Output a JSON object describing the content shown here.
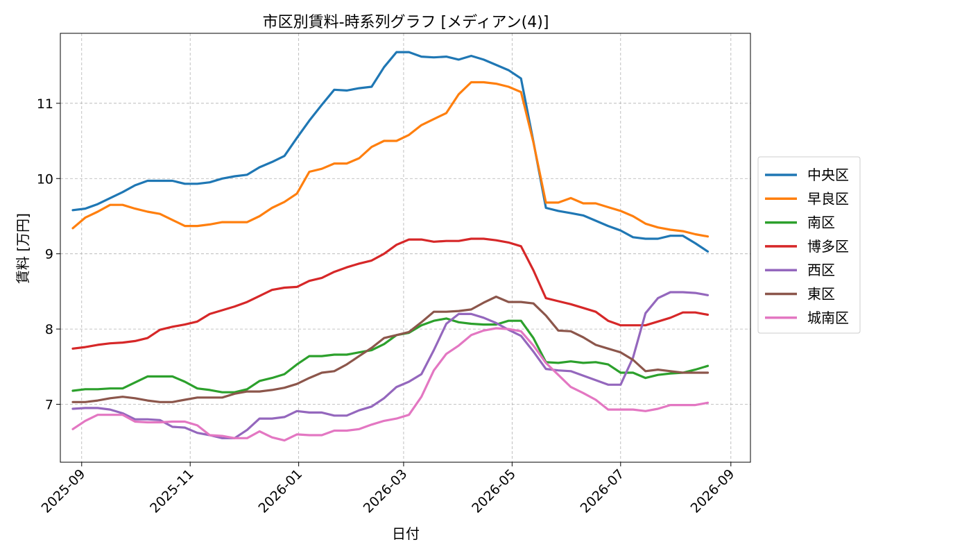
{
  "chart_data": {
    "type": "line",
    "title": "市区別賃料-時系列グラフ [メディアン(4)]",
    "xlabel": "日付",
    "ylabel": "賃料 [万円]",
    "xlim": [
      "2025-08-20",
      "2026-09-12"
    ],
    "ylim": [
      6.23,
      11.93
    ],
    "x_ticks": [
      "2025-09",
      "2025-11",
      "2026-01",
      "2026-03",
      "2026-05",
      "2026-07",
      "2026-09"
    ],
    "y_ticks": [
      7,
      8,
      9,
      10,
      11
    ],
    "grid": true,
    "legend_position": "right",
    "x": [
      "2025-08-27",
      "2025-09-03",
      "2025-09-10",
      "2025-09-17",
      "2025-09-24",
      "2025-10-01",
      "2025-10-08",
      "2025-10-15",
      "2025-10-22",
      "2025-10-29",
      "2025-11-05",
      "2025-11-12",
      "2025-11-19",
      "2025-11-26",
      "2025-12-03",
      "2025-12-10",
      "2025-12-17",
      "2025-12-24",
      "2025-12-31",
      "2026-01-07",
      "2026-01-14",
      "2026-01-21",
      "2026-01-28",
      "2026-02-04",
      "2026-02-11",
      "2026-02-18",
      "2026-02-25",
      "2026-03-04",
      "2026-03-11",
      "2026-03-18",
      "2026-03-25",
      "2026-04-01",
      "2026-04-08",
      "2026-04-15",
      "2026-04-22",
      "2026-04-29",
      "2026-05-06",
      "2026-05-13",
      "2026-05-20",
      "2026-05-27",
      "2026-06-03",
      "2026-06-10",
      "2026-06-17",
      "2026-06-24",
      "2026-07-01",
      "2026-07-08",
      "2026-07-15",
      "2026-07-22",
      "2026-07-29",
      "2026-08-05",
      "2026-08-12",
      "2026-08-19"
    ],
    "series": [
      {
        "name": "中央区",
        "color": "#1f77b4",
        "values": [
          9.58,
          9.6,
          9.66,
          9.74,
          9.82,
          9.91,
          9.97,
          9.97,
          9.97,
          9.93,
          9.93,
          9.95,
          10.0,
          10.03,
          10.05,
          10.15,
          10.22,
          10.3,
          10.54,
          10.77,
          10.98,
          11.18,
          11.17,
          11.2,
          11.22,
          11.48,
          11.68,
          11.68,
          11.62,
          11.61,
          11.62,
          11.58,
          11.63,
          11.58,
          11.51,
          11.44,
          11.33,
          10.49,
          9.61,
          9.57,
          9.54,
          9.51,
          9.44,
          9.37,
          9.31,
          9.22,
          9.2,
          9.2,
          9.24,
          9.24,
          9.14,
          9.03
        ]
      },
      {
        "name": "早良区",
        "color": "#ff7f0e",
        "values": [
          9.34,
          9.48,
          9.56,
          9.65,
          9.65,
          9.6,
          9.56,
          9.53,
          9.45,
          9.37,
          9.37,
          9.39,
          9.42,
          9.42,
          9.42,
          9.5,
          9.61,
          9.69,
          9.8,
          10.09,
          10.13,
          10.2,
          10.2,
          10.27,
          10.42,
          10.5,
          10.5,
          10.58,
          10.71,
          10.79,
          10.87,
          11.12,
          11.28,
          11.28,
          11.26,
          11.22,
          11.15,
          10.48,
          9.68,
          9.68,
          9.74,
          9.67,
          9.67,
          9.62,
          9.57,
          9.5,
          9.4,
          9.35,
          9.32,
          9.3,
          9.26,
          9.23
        ]
      },
      {
        "name": "南区",
        "color": "#2ca02c",
        "values": [
          7.18,
          7.2,
          7.2,
          7.21,
          7.21,
          7.29,
          7.37,
          7.37,
          7.37,
          7.3,
          7.21,
          7.19,
          7.16,
          7.16,
          7.2,
          7.31,
          7.35,
          7.4,
          7.53,
          7.64,
          7.64,
          7.66,
          7.66,
          7.69,
          7.72,
          7.8,
          7.92,
          7.95,
          8.05,
          8.11,
          8.14,
          8.09,
          8.07,
          8.06,
          8.06,
          8.11,
          8.11,
          7.88,
          7.56,
          7.55,
          7.57,
          7.55,
          7.56,
          7.53,
          7.42,
          7.42,
          7.35,
          7.39,
          7.41,
          7.42,
          7.46,
          7.51
        ]
      },
      {
        "name": "博多区",
        "color": "#d62728",
        "values": [
          7.74,
          7.76,
          7.79,
          7.81,
          7.82,
          7.84,
          7.88,
          7.99,
          8.03,
          8.06,
          8.1,
          8.2,
          8.25,
          8.3,
          8.36,
          8.44,
          8.52,
          8.55,
          8.56,
          8.64,
          8.68,
          8.76,
          8.82,
          8.87,
          8.91,
          9.0,
          9.12,
          9.19,
          9.19,
          9.16,
          9.17,
          9.17,
          9.2,
          9.2,
          9.18,
          9.15,
          9.1,
          8.78,
          8.41,
          8.37,
          8.33,
          8.28,
          8.23,
          8.11,
          8.05,
          8.05,
          8.05,
          8.1,
          8.15,
          8.22,
          8.22,
          8.19
        ]
      },
      {
        "name": "西区",
        "color": "#9467bd",
        "values": [
          6.94,
          6.95,
          6.95,
          6.93,
          6.88,
          6.8,
          6.8,
          6.79,
          6.7,
          6.69,
          6.62,
          6.59,
          6.55,
          6.55,
          6.66,
          6.81,
          6.81,
          6.83,
          6.91,
          6.89,
          6.89,
          6.85,
          6.85,
          6.92,
          6.97,
          7.08,
          7.23,
          7.3,
          7.4,
          7.72,
          8.07,
          8.2,
          8.2,
          8.15,
          8.08,
          7.99,
          7.91,
          7.7,
          7.47,
          7.45,
          7.44,
          7.38,
          7.32,
          7.26,
          7.26,
          7.62,
          8.21,
          8.41,
          8.49,
          8.49,
          8.48,
          8.45
        ]
      },
      {
        "name": "東区",
        "color": "#8c564b",
        "values": [
          7.03,
          7.03,
          7.05,
          7.08,
          7.1,
          7.08,
          7.05,
          7.03,
          7.03,
          7.06,
          7.09,
          7.09,
          7.09,
          7.14,
          7.17,
          7.17,
          7.19,
          7.22,
          7.27,
          7.35,
          7.42,
          7.44,
          7.53,
          7.64,
          7.75,
          7.88,
          7.92,
          7.96,
          8.09,
          8.23,
          8.23,
          8.24,
          8.26,
          8.35,
          8.43,
          8.36,
          8.36,
          8.34,
          8.18,
          7.98,
          7.97,
          7.89,
          7.79,
          7.74,
          7.69,
          7.59,
          7.44,
          7.46,
          7.44,
          7.42,
          7.42,
          7.42
        ]
      },
      {
        "name": "城南区",
        "color": "#e377c2",
        "values": [
          6.67,
          6.78,
          6.86,
          6.86,
          6.86,
          6.77,
          6.76,
          6.76,
          6.77,
          6.77,
          6.72,
          6.59,
          6.58,
          6.55,
          6.55,
          6.64,
          6.56,
          6.52,
          6.6,
          6.59,
          6.59,
          6.65,
          6.65,
          6.67,
          6.73,
          6.78,
          6.81,
          6.86,
          7.1,
          7.45,
          7.67,
          7.78,
          7.92,
          7.98,
          8.01,
          8.0,
          7.97,
          7.78,
          7.55,
          7.39,
          7.23,
          7.15,
          7.06,
          6.93,
          6.93,
          6.93,
          6.91,
          6.94,
          6.99,
          6.99,
          6.99,
          7.02
        ]
      }
    ]
  }
}
